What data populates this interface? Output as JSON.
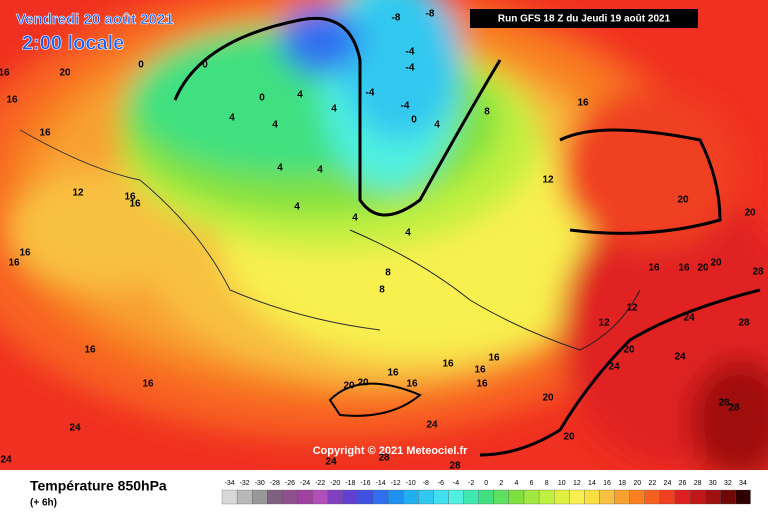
{
  "header": {
    "date": "Vendredi 20 août 2021",
    "time": "2:00 locale",
    "run": "Run GFS 18 Z du Jeudi 19 août 2021"
  },
  "copyright": "Copyright © 2021 Meteociel.fr",
  "footer": {
    "title": "Température 850hPa",
    "lead": "(+ 6h)"
  },
  "legend": {
    "ticks": [
      -34,
      -32,
      -30,
      -28,
      -26,
      -24,
      -22,
      -20,
      -18,
      -16,
      -14,
      -12,
      -10,
      -8,
      -6,
      -4,
      -2,
      0,
      2,
      4,
      6,
      8,
      10,
      12,
      14,
      16,
      18,
      20,
      22,
      24,
      26,
      28,
      30,
      32,
      34
    ],
    "colors": [
      "#d8d8d8",
      "#b8b8b8",
      "#989898",
      "#806080",
      "#905090",
      "#a040a0",
      "#b050b8",
      "#8040c0",
      "#6040d0",
      "#4050e0",
      "#3070f0",
      "#2090f0",
      "#20b0f0",
      "#30c8f0",
      "#40e0f0",
      "#50f0e0",
      "#40e8b0",
      "#40e080",
      "#60e060",
      "#80e040",
      "#a0e840",
      "#c0f040",
      "#e0f040",
      "#f8f050",
      "#f8e040",
      "#f8c040",
      "#f8a030",
      "#f88020",
      "#f86020",
      "#f04020",
      "#e02020",
      "#c01818",
      "#a01010",
      "#700808",
      "#300000"
    ]
  },
  "map": {
    "labels": [
      16,
      16,
      16,
      20,
      12,
      16,
      16,
      16,
      16,
      16,
      16,
      24,
      24,
      0,
      0,
      0,
      4,
      4,
      4,
      4,
      4,
      4,
      4,
      4,
      -8,
      -8,
      -4,
      -4,
      -4,
      -4,
      0,
      4,
      8,
      12,
      16,
      20,
      20,
      4,
      8,
      8,
      12,
      12,
      16,
      16,
      20,
      20,
      28,
      24,
      28,
      20,
      24,
      24,
      28,
      28,
      16,
      16,
      16,
      16,
      16,
      16,
      20,
      20,
      20,
      24,
      20,
      24,
      28,
      28
    ]
  }
}
